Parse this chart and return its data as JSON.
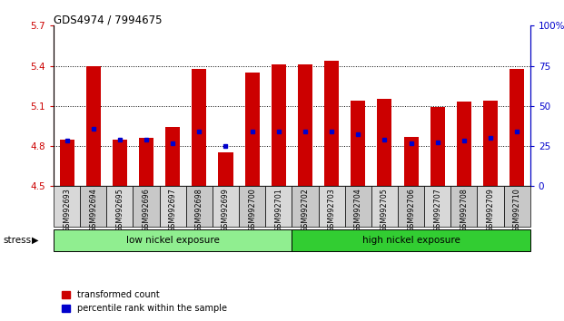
{
  "title": "GDS4974 / 7994675",
  "samples": [
    "GSM992693",
    "GSM992694",
    "GSM992695",
    "GSM992696",
    "GSM992697",
    "GSM992698",
    "GSM992699",
    "GSM992700",
    "GSM992701",
    "GSM992702",
    "GSM992703",
    "GSM992704",
    "GSM992705",
    "GSM992706",
    "GSM992707",
    "GSM992708",
    "GSM992709",
    "GSM992710"
  ],
  "red_values": [
    4.85,
    5.4,
    4.85,
    4.86,
    4.94,
    5.38,
    4.75,
    5.35,
    5.41,
    5.41,
    5.44,
    5.14,
    5.15,
    4.87,
    5.09,
    5.13,
    5.14,
    5.38
  ],
  "blue_values": [
    4.84,
    4.93,
    4.85,
    4.85,
    4.82,
    4.91,
    4.8,
    4.91,
    4.91,
    4.91,
    4.91,
    4.89,
    4.85,
    4.82,
    4.83,
    4.84,
    4.86,
    4.91
  ],
  "baseline": 4.5,
  "ylim_left": [
    4.5,
    5.7
  ],
  "ylim_right": [
    0,
    100
  ],
  "yticks_left": [
    4.5,
    4.8,
    5.1,
    5.4,
    5.7
  ],
  "ytick_labels_left": [
    "4.5",
    "4.8",
    "5.1",
    "5.4",
    "5.7"
  ],
  "yticks_right": [
    0,
    25,
    50,
    75,
    100
  ],
  "ytick_labels_right": [
    "0",
    "25",
    "50",
    "75",
    "100%"
  ],
  "group_low": {
    "label": "low nickel exposure",
    "start": 0,
    "end": 9,
    "color": "#90ee90"
  },
  "group_high": {
    "label": "high nickel exposure",
    "start": 9,
    "end": 18,
    "color": "#32cd32"
  },
  "stress_label": "stress",
  "legend_red": "transformed count",
  "legend_blue": "percentile rank within the sample",
  "bar_color": "#cc0000",
  "marker_color": "#0000cc",
  "bar_width": 0.55,
  "dotted_gridlines": [
    4.8,
    5.1,
    5.4
  ],
  "title_color": "#000000",
  "left_axis_color": "#cc0000",
  "right_axis_color": "#0000cc",
  "xtick_bg_even": "#d8d8d8",
  "xtick_bg_odd": "#c8c8c8"
}
